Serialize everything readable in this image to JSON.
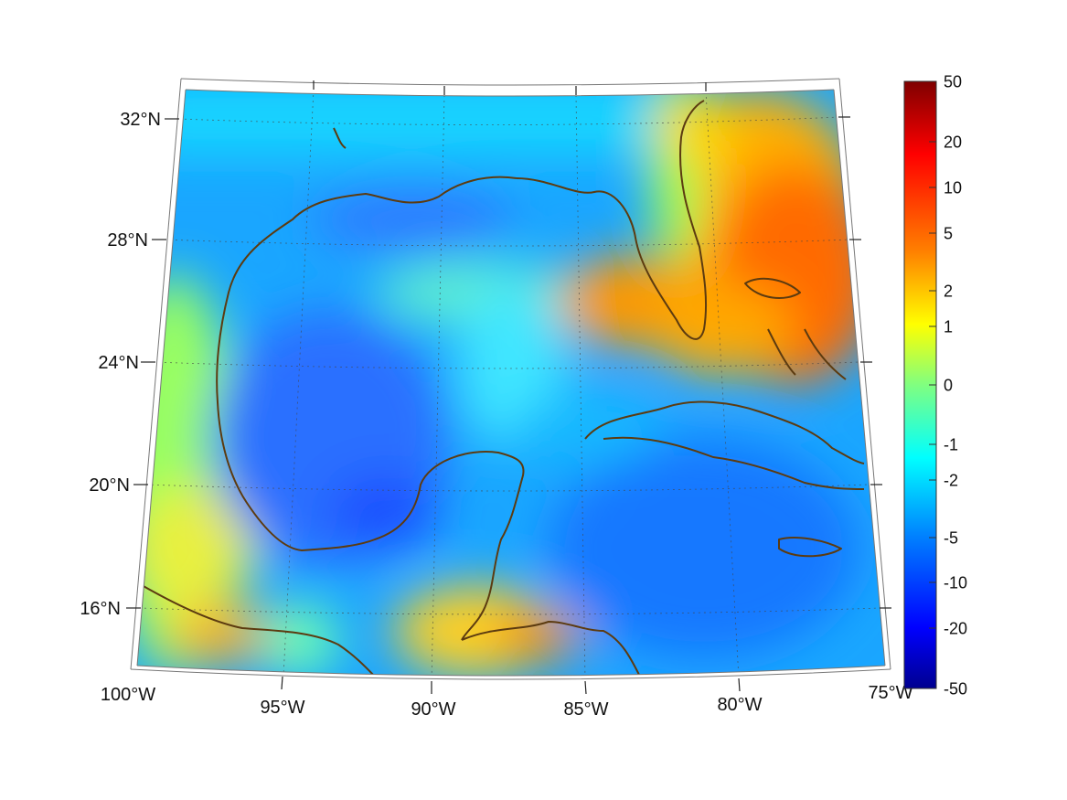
{
  "map": {
    "region": "Gulf of Mexico and Caribbean",
    "projection": "conic",
    "grid": true,
    "colormap": "jet",
    "coastline_color": "#5c3b10",
    "lat_labels": [
      "32°N",
      "28°N",
      "24°N",
      "20°N",
      "16°N"
    ],
    "lon_labels": [
      "100°W",
      "95°W",
      "90°W",
      "85°W",
      "80°W",
      "75°W"
    ],
    "extent": {
      "lon": [
        -100,
        -75
      ],
      "lat": [
        14,
        33
      ]
    }
  },
  "colorbar": {
    "ticks": [
      "50",
      "20",
      "10",
      "5",
      "2",
      "1",
      "0",
      "-1",
      "-2",
      "-5",
      "-10",
      "-20",
      "-50"
    ],
    "range": [
      -50,
      50
    ],
    "colors": [
      "#7f0000",
      "#ff0000",
      "#ff8000",
      "#ffff00",
      "#80ff80",
      "#00ffff",
      "#0080ff",
      "#0000ff",
      "#00008f"
    ]
  }
}
